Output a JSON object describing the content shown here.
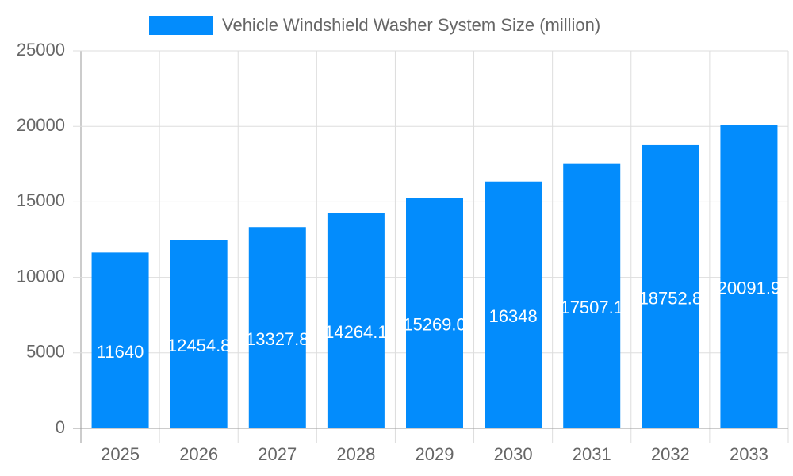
{
  "chart_data": {
    "type": "bar",
    "series": [
      {
        "name": "Vehicle Windshield Washer System Size (million)",
        "color": "#038cfc",
        "values": [
          11640,
          12454.8,
          13327.8,
          14264.1,
          15269.0,
          16348,
          17507.1,
          18752.8,
          20091.9
        ],
        "value_labels": [
          "11640",
          "12454.8",
          "13327.8",
          "14264.1",
          "15269.0",
          "16348",
          "17507.1",
          "18752.8",
          "20091.9"
        ]
      }
    ],
    "categories": [
      "2025",
      "2026",
      "2027",
      "2028",
      "2029",
      "2030",
      "2031",
      "2032",
      "2033"
    ],
    "ylim": [
      0,
      25000
    ],
    "yticks": [
      0,
      5000,
      10000,
      15000,
      20000,
      25000
    ],
    "grid": true,
    "legend": "top"
  }
}
